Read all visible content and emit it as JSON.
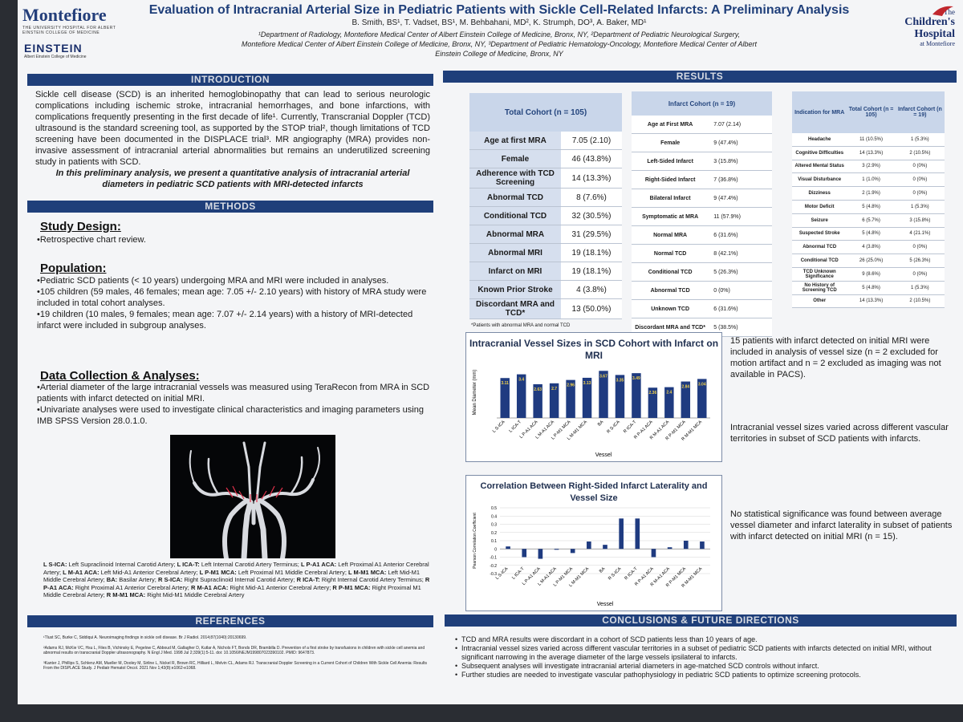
{
  "header": {
    "title": "Evaluation of Intracranial Arterial Size in Pediatric Patients with Sickle Cell-Related Infarcts: A Preliminary Analysis",
    "authors": "B. Smith, BS¹, T. Vadset, BS¹, M. Behbahani, MD², K. Strumph, DO³, A. Baker, MD¹",
    "aff1": "¹Department of Radiology, Montefiore Medical Center of Albert Einstein College of Medicine, Bronx, NY, ²Department of Pediatric Neurological Surgery,",
    "aff2": "Montefiore Medical Center of Albert Einstein College of Medicine, Bronx, NY, ³Department of Pediatric Hematology-Oncology, Montefiore Medical Center of Albert",
    "aff3": "Einstein College of Medicine, Bronx, NY"
  },
  "logos": {
    "montefiore": "Montefiore",
    "montefiore_sub": "THE UNIVERSITY HOSPITAL FOR ALBERT EINSTEIN COLLEGE OF MEDICINE",
    "einstein": "EINSTEIN",
    "einstein_sub": "Albert Einstein College of Medicine",
    "ch1": "The",
    "ch2": "Children's",
    "ch3": "Hospital",
    "ch4": "at Montefiore"
  },
  "sections": {
    "introduction": "INTRODUCTION",
    "methods": "METHODS",
    "results": "RESULTS",
    "references": "REFERENCES",
    "conclusions": "CONCLUSIONS & FUTURE DIRECTIONS"
  },
  "intro": {
    "body": "Sickle cell disease (SCD) is an inherited hemoglobinopathy that can lead to serious neurologic complications including ischemic stroke, intracranial hemorrhages, and bone infarctions, with complications frequently presenting in the first decade of life¹. Currently, Transcranial Doppler (TCD) ultrasound is the standard screening tool, as supported by the STOP trial², though limitations of TCD screening have been documented in the DISPLACE trial³. MR angiography (MRA) provides non-invasive assessment of intracranial arterial abnormalities but remains an underutilized screening study in patients with SCD.",
    "emphasis": "In this preliminary analysis, we present a quantitative analysis of intracranial arterial diameters in pediatric SCD patients with MRI-detected infarcts"
  },
  "methods": {
    "study_design_head": "Study Design:",
    "study_design": "•Retrospective chart review.",
    "population_head": "Population:",
    "pop1": "•Pediatric SCD patients (< 10 years) undergoing MRA and MRI were included in analyses.",
    "pop2": "•105 children (59 males, 46 females; mean age: 7.05 +/- 2.10 years) with history of MRA study were included in total cohort analyses.",
    "pop3": "•19 children (10 males, 9 females; mean age: 7.07 +/- 2.14 years) with a history of MRI-detected infarct were included in subgroup analyses.",
    "data_head": "Data Collection & Analyses:",
    "data1": "•Arterial diameter of the large intracranial vessels was measured using TeraRecon from MRA in SCD patients with infarct detected on initial MRI.",
    "data2": "•Univariate analyses were used to investigate clinical characteristics and imaging parameters using IMB SPSS Version 28.0.1.0."
  },
  "legend": [
    {
      "abbr": "L S-ICA:",
      "text": " Left Supraclinoid Internal Carotid Artery; "
    },
    {
      "abbr": "L ICA-T:",
      "text": " Left Internal Carotid Artery Terminus; "
    },
    {
      "abbr": "L P-A1 ACA:",
      "text": " Left Proximal A1 Anterior Cerebral Artery; "
    },
    {
      "abbr": "L M-A1 ACA:",
      "text": " Left Mid-A1 Anterior Cerebral Artery; "
    },
    {
      "abbr": "L P-M1 MCA:",
      "text": " Left Proximal M1 Middle Cerebral Artery; "
    },
    {
      "abbr": "L M-M1 MCA:",
      "text": " Left Mid-M1 Middle Cerebral Artery; "
    },
    {
      "abbr": "BA:",
      "text": " Basilar Artery; "
    },
    {
      "abbr": "R S-ICA:",
      "text": " Right Supraclinoid Internal Carotid Artery; "
    },
    {
      "abbr": "R ICA-T:",
      "text": " Right Internal Carotid Artery Terminus; "
    },
    {
      "abbr": "R P-A1 ACA:",
      "text": " Right Proximal A1 Anterior Cerebral Artery; "
    },
    {
      "abbr": "R M-A1 ACA:",
      "text": " Right Mid-A1 Anterior Cerebral Artery; "
    },
    {
      "abbr": "R P-M1 MCA:",
      "text": " Right Proximal M1 Middle Cerebral Artery; "
    },
    {
      "abbr": "R M-M1 MCA:",
      "text": " Right Mid-M1 Middle Cerebral Artery"
    }
  ],
  "references": [
    "¹Tlust SC, Burke C, Siddiqui A. Neuroimaging findings in sickle cell disease. Br J Radiol. 2014;87(1040):20130699.",
    "²Adams RJ, McKie VC, Hsu L, Files B, Vichinsky E, Pegelow C, Abboud M, Gallagher D, Kutlar A, Nichols FT, Bonds DR, Brambilla D. Prevention of a first stroke by transfusions in children with sickle cell anemia and abnormal results on transcranial Doppler ultrasonography. N Engl J Med. 1998 Jul 2;339(1):5-11. doi: 10.1056/NEJM199807023390102. PMID: 9647873.",
    "³Kanter J, Phillips S, Schlenz AM, Mueller M, Dooley M, Sirline L, Nickel R, Brown RC, Hilliard L, Melvin CL, Adams RJ. Transcranial Doppler Screening in a Current Cohort of Children With Sickle Cell Anemia: Results From the DISPLACE Study. J Pediatr Hematol Oncol. 2021 Nov 1;43(8):e1062-e1068."
  ],
  "table1": {
    "header": "Total Cohort (n = 105)",
    "rows": [
      {
        "label": "Age at first MRA",
        "value": "7.05 (2.10)"
      },
      {
        "label": "Female",
        "value": "46 (43.8%)"
      },
      {
        "label": "Adherence with TCD Screening",
        "value": "14 (13.3%)"
      },
      {
        "label": "Abnormal TCD",
        "value": "8 (7.6%)"
      },
      {
        "label": "Conditional TCD",
        "value": "32 (30.5%)"
      },
      {
        "label": "Abnormal MRA",
        "value": "31 (29.5%)"
      },
      {
        "label": "Abnormal MRI",
        "value": "19 (18.1%)"
      },
      {
        "label": "Infarct on MRI",
        "value": "19 (18.1%)"
      },
      {
        "label": "Known Prior Stroke",
        "value": "4 (3.8%)"
      },
      {
        "label": "Discordant MRA and TCD*",
        "value": "13 (50.0%)"
      }
    ]
  },
  "table2": {
    "header": "Infarct Cohort (n = 19)",
    "rows": [
      {
        "label": "Age at First MRA",
        "value": "7.07 (2.14)"
      },
      {
        "label": "Female",
        "value": "9 (47.4%)"
      },
      {
        "label": "Left-Sided Infarct",
        "value": "3 (15.8%)"
      },
      {
        "label": "Right-Sided Infarct",
        "value": "7 (36.8%)"
      },
      {
        "label": "Bilateral Infarct",
        "value": "9 (47.4%)"
      },
      {
        "label": "Symptomatic at MRA",
        "value": "11 (57.9%)"
      },
      {
        "label": "Normal MRA",
        "value": "6 (31.6%)"
      },
      {
        "label": "Normal TCD",
        "value": "8 (42.1%)"
      },
      {
        "label": "Conditional TCD",
        "value": "5 (26.3%)"
      },
      {
        "label": "Abnormal TCD",
        "value": "0 (0%)"
      },
      {
        "label": "Unknown TCD",
        "value": "6 (31.6%)"
      },
      {
        "label": "Discordant MRA and TCD*",
        "value": "5 (38.5%)"
      }
    ]
  },
  "table3": {
    "h1": "Indication for MRA",
    "h2": "Total Cohort (n = 105)",
    "h3": "Infarct Cohort (n = 19)",
    "rows": [
      {
        "label": "Headache",
        "c1": "11 (10.5%)",
        "c2": "1 (5.3%)"
      },
      {
        "label": "Cognitive Difficulties",
        "c1": "14 (13.3%)",
        "c2": "2 (10.5%)"
      },
      {
        "label": "Altered Mental Status",
        "c1": "3 (2.9%)",
        "c2": "0 (0%)"
      },
      {
        "label": "Visual Disturbance",
        "c1": "1 (1.0%)",
        "c2": "0 (0%)"
      },
      {
        "label": "Dizziness",
        "c1": "2 (1.9%)",
        "c2": "0 (0%)"
      },
      {
        "label": "Motor Deficit",
        "c1": "5 (4.8%)",
        "c2": "1 (5.3%)"
      },
      {
        "label": "Seizure",
        "c1": "6 (5.7%)",
        "c2": "3 (15.8%)"
      },
      {
        "label": "Suspected Stroke",
        "c1": "5 (4.8%)",
        "c2": "4 (21.1%)"
      },
      {
        "label": "Abnormal TCD",
        "c1": "4 (3.8%)",
        "c2": "0 (0%)"
      },
      {
        "label": "Conditional TCD",
        "c1": "26 (25.0%)",
        "c2": "5 (26.3%)"
      },
      {
        "label": "TCD Unknown Significance",
        "c1": "9 (8.6%)",
        "c2": "0 (0%)"
      },
      {
        "label": "No History of Screening TCD",
        "c1": "5 (4.8%)",
        "c2": "1 (5.3%)"
      },
      {
        "label": "Other",
        "c1": "14 (13.3%)",
        "c2": "2 (10.5%)"
      }
    ]
  },
  "table_note": "*Patients with abnormal MRA and normal TCD",
  "chart_data": [
    {
      "type": "bar",
      "title": "Intracranial Vessel Sizes in SCD Cohort with Infarct on MRI",
      "xlabel": "Vessel",
      "ylabel": "Mean Diameter (mm)",
      "categories": [
        "L S-ICA",
        "L ICA-T",
        "L P-A1 ACA",
        "L M-A1 ACA",
        "L P-M1 MCA",
        "L M-M1 MCA",
        "BA",
        "R S-ICA",
        "R ICA-T",
        "R P-A1 ACA",
        "R M-A1 ACA",
        "R P-M1 MCA",
        "R M-M1 MCA"
      ],
      "values": [
        3.11,
        3.4,
        2.63,
        2.7,
        2.96,
        3.13,
        3.67,
        3.35,
        3.49,
        2.36,
        2.4,
        2.84,
        3.04
      ],
      "ylim": [
        0,
        4
      ],
      "color": "#1f3b80"
    },
    {
      "type": "bar",
      "title": "Correlation Between Right-Sided Infarct Laterality and Vessel Size",
      "xlabel": "Vessel",
      "ylabel": "Pearson Correlation Coefficient",
      "categories": [
        "L S-ICA",
        "L ICA-T",
        "L P-A1 ACA",
        "L M-A1 ACA",
        "L P-M1 MCA",
        "L M-M1 MCA",
        "BA",
        "R S-ICA",
        "R ICA-T",
        "R P-A1 ACA",
        "R M-A1 ACA",
        "R P-M1 MCA",
        "R M-M1 MCA"
      ],
      "values": [
        0.03,
        -0.1,
        -0.12,
        -0.01,
        -0.05,
        0.09,
        0.05,
        0.37,
        0.37,
        -0.1,
        0.02,
        0.1,
        0.09
      ],
      "ylim": [
        -0.3,
        0.5
      ],
      "yticks": [
        0.5,
        0.4,
        0.3,
        0.2,
        0.1,
        0,
        -0.1,
        -0.2,
        -0.3
      ],
      "color": "#1f3b80"
    }
  ],
  "results_text": {
    "r1": "15 patients with infarct detected on initial MRI were included in analysis of vessel size (n = 2 excluded for motion artifact and n = 2 excluded as imaging was not available in PACS).",
    "r2": "Intracranial vessel sizes varied across different vascular territories in subset of SCD patients with infarcts.",
    "r3": "No statistical significance was found between average vessel diameter and infarct laterality in subset of patients with infarct detected on initial MRI (n = 15)."
  },
  "conclusions": [
    "TCD and MRA results were discordant in a cohort of SCD patients less than 10 years of age.",
    "Intracranial vessel sizes varied across different vascular territories in a subset of pediatric SCD patients with infarcts detected on initial MRI, without significant narrowing in the average diameter of the large vessels ipsilateral to infarcts.",
    "Subsequent analyses will investigate intracranial arterial diameters in age-matched SCD controls without infarct.",
    "Further studies are needed to investigate vascular pathophysiology in pediatric SCD patients to optimize screening protocols."
  ]
}
